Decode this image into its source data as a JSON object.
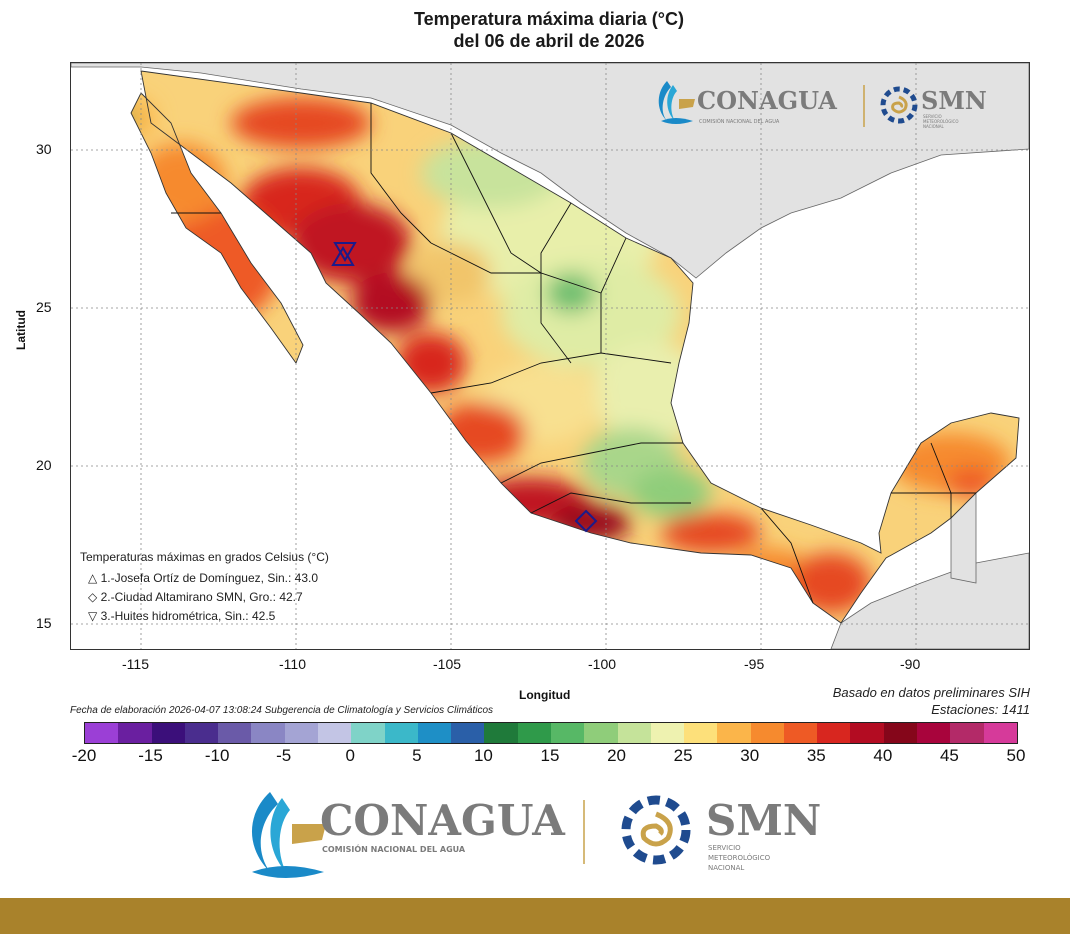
{
  "header": {
    "title_line1": "Temperatura máxima diaria (°C)",
    "title_line2": "del 06 de abril de 2026"
  },
  "axes": {
    "ylabel": "Latitud",
    "xlabel": "Longitud",
    "yticks": [
      "30",
      "25",
      "20",
      "15"
    ],
    "xticks": [
      "-115",
      "-110",
      "-105",
      "-100",
      "-95",
      "-90"
    ]
  },
  "legend": {
    "title": "Temperaturas máximas en grados Celsius (°C)",
    "items": [
      {
        "symbol": "△",
        "text": "1.-Josefa Ortíz de Domínguez, Sin.: 43.0"
      },
      {
        "symbol": "◇",
        "text": "2.-Ciudad Altamirano SMN, Gro.: 42.7"
      },
      {
        "symbol": "▽",
        "text": "3.-Huites hidrométrica, Sin.: 42.5"
      }
    ]
  },
  "meta": {
    "elaboration": "Fecha de elaboración 2026-04-07 13:08:24 Subgerencia de Climatología y Servicios Climáticos",
    "source": "Basado en datos preliminares SIH",
    "stations": "Estaciones:  1411"
  },
  "colorbar": {
    "ticks": [
      "-20",
      "-15",
      "-10",
      "-5",
      "0",
      "5",
      "10",
      "15",
      "20",
      "25",
      "30",
      "35",
      "40",
      "45",
      "50"
    ],
    "colors": [
      "#9b3fd6",
      "#6a1fa0",
      "#3b0f7a",
      "#4a2d8e",
      "#6a5aa8",
      "#8a86c4",
      "#a4a4d4",
      "#c3c5e5",
      "#7fd3c8",
      "#3bb8c9",
      "#1e8fc6",
      "#2a5fa8",
      "#1f7a3a",
      "#2f9a4a",
      "#57b866",
      "#8fcd7a",
      "#c5e39a",
      "#eef2b0",
      "#fde07a",
      "#fbb54a",
      "#f68a2e",
      "#ee5a25",
      "#d8261f",
      "#b30c22",
      "#85061a",
      "#a8043c",
      "#b32a68",
      "#d63a9a"
    ]
  },
  "logos": {
    "conagua": "CONAGUA",
    "conagua_sub": "COMISIÓN NACIONAL DEL AGUA",
    "smn": "SMN",
    "smn_sub1": "SERVICIO",
    "smn_sub2": "METEOROLÓGICO",
    "smn_sub3": "NACIONAL"
  },
  "map": {
    "type": "temperature-field",
    "region": "México",
    "lon_range": [
      -117.3,
      -86.5
    ],
    "lat_range": [
      14.3,
      32.8
    ],
    "stations_marked": [
      {
        "id": 1,
        "name": "Josefa Ortíz de Domínguez, Sin.",
        "lon": -108.1,
        "lat": 26.9,
        "tmax": 43.0
      },
      {
        "id": 2,
        "name": "Ciudad Altamirano SMN, Gro.",
        "lon": -100.7,
        "lat": 18.3,
        "tmax": 42.7
      },
      {
        "id": 3,
        "name": "Huites hidrométrica, Sin.",
        "lon": -108.4,
        "lat": 26.8,
        "tmax": 42.5
      }
    ]
  }
}
